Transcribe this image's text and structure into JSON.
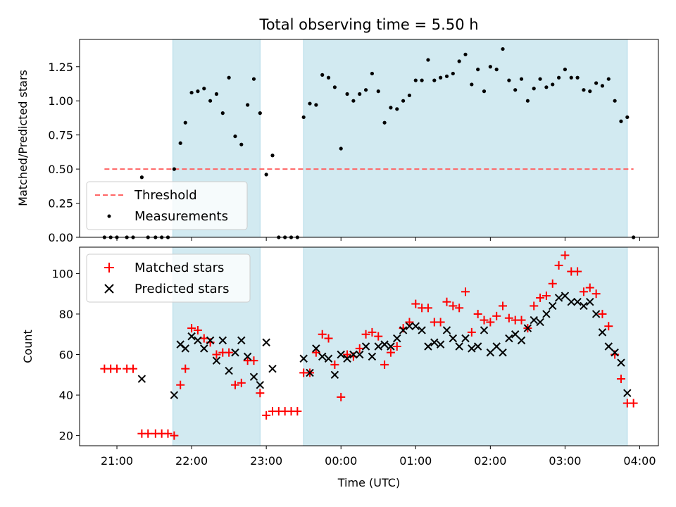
{
  "figure": {
    "title": "Total observing time = 5.50 h",
    "xlabel": "Time (UTC)"
  },
  "colors": {
    "shade": "#add8e6",
    "threshold": "#ff6666",
    "measurement": "#000000",
    "matched": "#ff0000",
    "predicted": "#000000"
  },
  "chart_data": [
    {
      "type": "scatter",
      "ylabel": "Matched/Predicted stars",
      "xlim": [
        "20:30",
        "04:15"
      ],
      "ylim": [
        0.0,
        1.45
      ],
      "yticks": [
        "0.00",
        "0.25",
        "0.50",
        "0.75",
        "1.00",
        "1.25"
      ],
      "xtick_marks": [
        "21:00",
        "22:00",
        "23:00",
        "00:00",
        "01:00",
        "02:00",
        "03:00",
        "04:00"
      ],
      "shaded_intervals": [
        [
          "21:45",
          "22:55"
        ],
        [
          "23:30",
          "03:50"
        ]
      ],
      "legend": {
        "placement": "lower left",
        "entries": [
          "Threshold",
          "Measurements"
        ]
      },
      "threshold": {
        "name": "Threshold",
        "value": 0.5,
        "x_range": [
          "20:50",
          "03:55"
        ]
      },
      "series": [
        {
          "name": "Measurements",
          "points": [
            [
              "20:50",
              0.0
            ],
            [
              "20:55",
              0.0
            ],
            [
              "21:00",
              0.0
            ],
            [
              "21:08",
              0.0
            ],
            [
              "21:13",
              0.0
            ],
            [
              "21:20",
              0.44
            ],
            [
              "21:25",
              0.0
            ],
            [
              "21:31",
              0.0
            ],
            [
              "21:36",
              0.0
            ],
            [
              "21:41",
              0.0
            ],
            [
              "21:46",
              0.5
            ],
            [
              "21:51",
              0.69
            ],
            [
              "21:55",
              0.84
            ],
            [
              "22:00",
              1.06
            ],
            [
              "22:05",
              1.07
            ],
            [
              "22:10",
              1.09
            ],
            [
              "22:15",
              1.0
            ],
            [
              "22:20",
              1.05
            ],
            [
              "22:25",
              0.91
            ],
            [
              "22:30",
              1.17
            ],
            [
              "22:35",
              0.74
            ],
            [
              "22:40",
              0.68
            ],
            [
              "22:45",
              0.97
            ],
            [
              "22:50",
              1.16
            ],
            [
              "22:55",
              0.91
            ],
            [
              "23:00",
              0.46
            ],
            [
              "23:05",
              0.6
            ],
            [
              "23:10",
              0.0
            ],
            [
              "23:15",
              0.0
            ],
            [
              "23:20",
              0.0
            ],
            [
              "23:25",
              0.0
            ],
            [
              "23:30",
              0.88
            ],
            [
              "23:35",
              0.98
            ],
            [
              "23:40",
              0.97
            ],
            [
              "23:45",
              1.19
            ],
            [
              "23:50",
              1.17
            ],
            [
              "23:55",
              1.1
            ],
            [
              "00:00",
              0.65
            ],
            [
              "00:05",
              1.05
            ],
            [
              "00:10",
              1.0
            ],
            [
              "00:15",
              1.05
            ],
            [
              "00:20",
              1.08
            ],
            [
              "00:25",
              1.2
            ],
            [
              "00:30",
              1.07
            ],
            [
              "00:35",
              0.84
            ],
            [
              "00:40",
              0.95
            ],
            [
              "00:45",
              0.94
            ],
            [
              "00:50",
              1.0
            ],
            [
              "00:55",
              1.04
            ],
            [
              "01:00",
              1.15
            ],
            [
              "01:05",
              1.15
            ],
            [
              "01:10",
              1.3
            ],
            [
              "01:15",
              1.15
            ],
            [
              "01:20",
              1.17
            ],
            [
              "01:25",
              1.18
            ],
            [
              "01:30",
              1.2
            ],
            [
              "01:35",
              1.29
            ],
            [
              "01:40",
              1.34
            ],
            [
              "01:45",
              1.12
            ],
            [
              "01:50",
              1.23
            ],
            [
              "01:55",
              1.07
            ],
            [
              "02:00",
              1.25
            ],
            [
              "02:05",
              1.23
            ],
            [
              "02:10",
              1.38
            ],
            [
              "02:15",
              1.15
            ],
            [
              "02:20",
              1.08
            ],
            [
              "02:25",
              1.16
            ],
            [
              "02:30",
              1.0
            ],
            [
              "02:35",
              1.09
            ],
            [
              "02:40",
              1.16
            ],
            [
              "02:45",
              1.1
            ],
            [
              "02:50",
              1.12
            ],
            [
              "02:55",
              1.17
            ],
            [
              "03:00",
              1.23
            ],
            [
              "03:05",
              1.17
            ],
            [
              "03:10",
              1.17
            ],
            [
              "03:15",
              1.08
            ],
            [
              "03:20",
              1.07
            ],
            [
              "03:25",
              1.13
            ],
            [
              "03:30",
              1.11
            ],
            [
              "03:35",
              1.16
            ],
            [
              "03:40",
              1.0
            ],
            [
              "03:45",
              0.85
            ],
            [
              "03:50",
              0.88
            ],
            [
              "03:55",
              0.0
            ]
          ]
        }
      ]
    },
    {
      "type": "scatter",
      "ylabel": "Count",
      "xlabel": "Time (UTC)",
      "xlim": [
        "20:30",
        "04:15"
      ],
      "ylim": [
        15,
        113
      ],
      "yticks": [
        "20",
        "40",
        "60",
        "80",
        "100"
      ],
      "xticks": [
        "21:00",
        "22:00",
        "23:00",
        "00:00",
        "01:00",
        "02:00",
        "03:00",
        "04:00"
      ],
      "shaded_intervals": [
        [
          "21:45",
          "22:55"
        ],
        [
          "23:30",
          "03:50"
        ]
      ],
      "legend": {
        "placement": "upper left",
        "entries": [
          "Matched stars",
          "Predicted stars"
        ]
      },
      "series": [
        {
          "name": "Matched stars",
          "marker": "+",
          "points": [
            [
              "20:50",
              53
            ],
            [
              "20:55",
              53
            ],
            [
              "21:00",
              53
            ],
            [
              "21:08",
              53
            ],
            [
              "21:13",
              53
            ],
            [
              "21:20",
              21
            ],
            [
              "21:25",
              21
            ],
            [
              "21:31",
              21
            ],
            [
              "21:36",
              21
            ],
            [
              "21:41",
              21
            ],
            [
              "21:46",
              20
            ],
            [
              "21:51",
              45
            ],
            [
              "21:55",
              53
            ],
            [
              "22:00",
              73
            ],
            [
              "22:05",
              72
            ],
            [
              "22:10",
              68
            ],
            [
              "22:15",
              66
            ],
            [
              "22:20",
              60
            ],
            [
              "22:25",
              61
            ],
            [
              "22:30",
              61
            ],
            [
              "22:35",
              45
            ],
            [
              "22:40",
              46
            ],
            [
              "22:45",
              57
            ],
            [
              "22:50",
              57
            ],
            [
              "22:55",
              41
            ],
            [
              "23:00",
              30
            ],
            [
              "23:05",
              32
            ],
            [
              "23:10",
              32
            ],
            [
              "23:15",
              32
            ],
            [
              "23:20",
              32
            ],
            [
              "23:25",
              32
            ],
            [
              "23:30",
              51
            ],
            [
              "23:35",
              51
            ],
            [
              "23:40",
              61
            ],
            [
              "23:45",
              70
            ],
            [
              "23:50",
              68
            ],
            [
              "23:55",
              55
            ],
            [
              "00:00",
              39
            ],
            [
              "00:05",
              60
            ],
            [
              "00:10",
              59
            ],
            [
              "00:15",
              63
            ],
            [
              "00:20",
              70
            ],
            [
              "00:25",
              71
            ],
            [
              "00:30",
              69
            ],
            [
              "00:35",
              55
            ],
            [
              "00:40",
              61
            ],
            [
              "00:45",
              64
            ],
            [
              "00:50",
              73
            ],
            [
              "00:55",
              76
            ],
            [
              "01:00",
              85
            ],
            [
              "01:05",
              83
            ],
            [
              "01:10",
              83
            ],
            [
              "01:15",
              76
            ],
            [
              "01:20",
              76
            ],
            [
              "01:25",
              86
            ],
            [
              "01:30",
              84
            ],
            [
              "01:35",
              83
            ],
            [
              "01:40",
              91
            ],
            [
              "01:45",
              71
            ],
            [
              "01:50",
              80
            ],
            [
              "01:55",
              77
            ],
            [
              "02:00",
              76
            ],
            [
              "02:05",
              79
            ],
            [
              "02:10",
              84
            ],
            [
              "02:15",
              78
            ],
            [
              "02:20",
              77
            ],
            [
              "02:25",
              77
            ],
            [
              "02:30",
              73
            ],
            [
              "02:35",
              84
            ],
            [
              "02:40",
              88
            ],
            [
              "02:45",
              89
            ],
            [
              "02:50",
              95
            ],
            [
              "02:55",
              104
            ],
            [
              "03:00",
              109
            ],
            [
              "03:05",
              101
            ],
            [
              "03:10",
              101
            ],
            [
              "03:15",
              91
            ],
            [
              "03:20",
              93
            ],
            [
              "03:25",
              90
            ],
            [
              "03:30",
              80
            ],
            [
              "03:35",
              74
            ],
            [
              "03:40",
              60
            ],
            [
              "03:45",
              48
            ],
            [
              "03:50",
              36
            ],
            [
              "03:55",
              36
            ]
          ]
        },
        {
          "name": "Predicted stars",
          "marker": "x",
          "points": [
            [
              "21:20",
              48
            ],
            [
              "21:46",
              40
            ],
            [
              "21:51",
              65
            ],
            [
              "21:55",
              63
            ],
            [
              "22:00",
              69
            ],
            [
              "22:05",
              67
            ],
            [
              "22:10",
              63
            ],
            [
              "22:15",
              67
            ],
            [
              "22:20",
              57
            ],
            [
              "22:25",
              67
            ],
            [
              "22:30",
              52
            ],
            [
              "22:35",
              61
            ],
            [
              "22:40",
              67
            ],
            [
              "22:45",
              59
            ],
            [
              "22:50",
              49
            ],
            [
              "22:55",
              45
            ],
            [
              "23:00",
              66
            ],
            [
              "23:05",
              53
            ],
            [
              "23:30",
              58
            ],
            [
              "23:35",
              51
            ],
            [
              "23:40",
              63
            ],
            [
              "23:45",
              59
            ],
            [
              "23:50",
              58
            ],
            [
              "23:55",
              50
            ],
            [
              "00:00",
              60
            ],
            [
              "00:05",
              58
            ],
            [
              "00:10",
              60
            ],
            [
              "00:15",
              60
            ],
            [
              "00:20",
              64
            ],
            [
              "00:25",
              59
            ],
            [
              "00:30",
              64
            ],
            [
              "00:35",
              65
            ],
            [
              "00:40",
              64
            ],
            [
              "00:45",
              68
            ],
            [
              "00:50",
              72
            ],
            [
              "00:55",
              74
            ],
            [
              "01:00",
              74
            ],
            [
              "01:05",
              72
            ],
            [
              "01:10",
              64
            ],
            [
              "01:15",
              66
            ],
            [
              "01:20",
              65
            ],
            [
              "01:25",
              72
            ],
            [
              "01:30",
              68
            ],
            [
              "01:35",
              64
            ],
            [
              "01:40",
              68
            ],
            [
              "01:45",
              63
            ],
            [
              "01:50",
              64
            ],
            [
              "01:55",
              72
            ],
            [
              "02:00",
              61
            ],
            [
              "02:05",
              64
            ],
            [
              "02:10",
              61
            ],
            [
              "02:15",
              68
            ],
            [
              "02:20",
              70
            ],
            [
              "02:25",
              67
            ],
            [
              "02:30",
              73
            ],
            [
              "02:35",
              77
            ],
            [
              "02:40",
              76
            ],
            [
              "02:45",
              80
            ],
            [
              "02:50",
              84
            ],
            [
              "02:55",
              88
            ],
            [
              "03:00",
              89
            ],
            [
              "03:05",
              86
            ],
            [
              "03:10",
              86
            ],
            [
              "03:15",
              84
            ],
            [
              "03:20",
              86
            ],
            [
              "03:25",
              80
            ],
            [
              "03:30",
              71
            ],
            [
              "03:35",
              64
            ],
            [
              "03:40",
              61
            ],
            [
              "03:45",
              56
            ],
            [
              "03:50",
              41
            ]
          ]
        }
      ]
    }
  ]
}
